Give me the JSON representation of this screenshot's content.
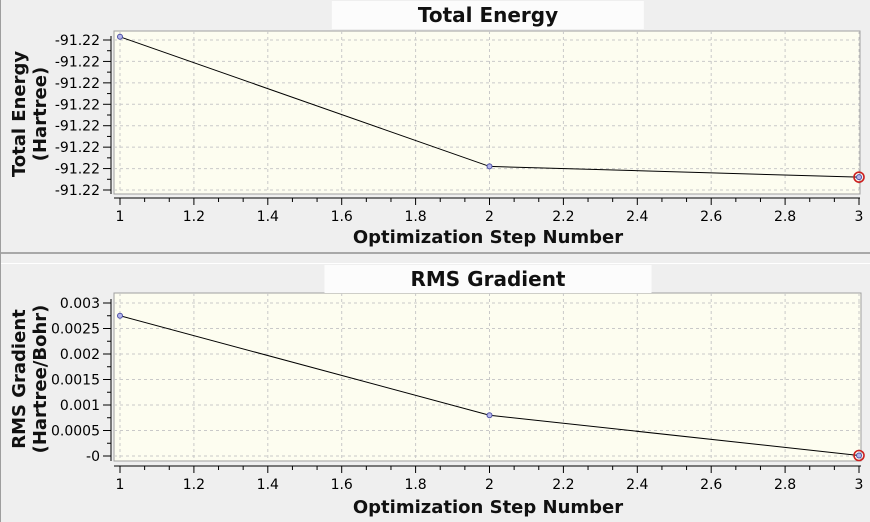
{
  "colors": {
    "panel_bg": "#efefef",
    "plot_bg": "#fdfdf0",
    "grid": "#c9c9c9",
    "plot_border": "#a0a0a0",
    "axis": "#000000",
    "series_line": "#000000",
    "marker_fill": "#b4b6ec",
    "marker_stroke": "#4f51a5",
    "last_marker_ring": "#cc2020",
    "title_bg": "#fcfcfc",
    "text": "#000000"
  },
  "chart_data": [
    {
      "type": "line",
      "title": "Total Energy",
      "xlabel": "Optimization Step Number",
      "ylabel_line1": "Total Energy",
      "ylabel_line2": "(Hartree)",
      "x": [
        1,
        2,
        3
      ],
      "y": [
        -91.21997,
        -91.22118,
        -91.22128
      ],
      "xlim": [
        1,
        3
      ],
      "x_ticks": [
        1,
        1.2,
        1.4,
        1.6,
        1.8,
        2,
        2.2,
        2.4,
        2.6,
        2.8,
        3
      ],
      "x_tick_labels": [
        "1",
        "1.2",
        "1.4",
        "1.6",
        "1.8",
        "2",
        "2.2",
        "2.4",
        "2.6",
        "2.8",
        "3"
      ],
      "y_ticks": [
        -91.22,
        -91.2202,
        -91.2204,
        -91.2206,
        -91.2208,
        -91.221,
        -91.2212,
        -91.2214
      ],
      "y_tick_labels": [
        "-91.22",
        "-91.22",
        "-91.22",
        "-91.22",
        "-91.22",
        "-91.22",
        "-91.22",
        "-91.22"
      ],
      "grid": true,
      "legend": "none",
      "last_point_highlighted": true
    },
    {
      "type": "line",
      "title": "RMS Gradient",
      "xlabel": "Optimization Step Number",
      "ylabel_line1": "RMS Gradient",
      "ylabel_line2": "(Hartree/Bohr)",
      "x": [
        1,
        2,
        3
      ],
      "y": [
        0.00275,
        0.0008,
        1e-05
      ],
      "xlim": [
        1,
        3
      ],
      "x_ticks": [
        1,
        1.2,
        1.4,
        1.6,
        1.8,
        2,
        2.2,
        2.4,
        2.6,
        2.8,
        3
      ],
      "x_tick_labels": [
        "1",
        "1.2",
        "1.4",
        "1.6",
        "1.8",
        "2",
        "2.2",
        "2.4",
        "2.6",
        "2.8",
        "3"
      ],
      "y_ticks": [
        0.003,
        0.0025,
        0.002,
        0.0015,
        0.001,
        0.0005,
        0
      ],
      "y_tick_labels": [
        "0.003",
        "0.0025",
        "0.002",
        "0.0015",
        "0.001",
        "0.0005",
        "-0"
      ],
      "grid": true,
      "legend": "none",
      "last_point_highlighted": true
    }
  ]
}
